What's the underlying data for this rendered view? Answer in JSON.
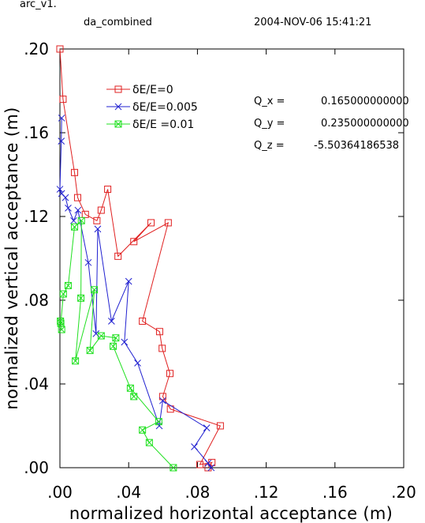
{
  "header": {
    "program": "arc_v1.",
    "run_name": "da_combined",
    "timestamp": "2004-NOV-06  15:41:21"
  },
  "chart_data": {
    "type": "line",
    "xlabel": "normalized horizontal acceptance (m)",
    "ylabel": "normalized vertical acceptance (m)",
    "xlim": [
      0,
      0.2
    ],
    "ylim": [
      0,
      0.2
    ],
    "x_ticks": [
      ".00",
      ".04",
      ".08",
      ".12",
      ".16",
      ".20"
    ],
    "y_ticks": [
      ".00",
      ".04",
      ".08",
      ".12",
      ".16",
      ".20"
    ],
    "grid": false,
    "legend_position": "top-left",
    "series": [
      {
        "name": "δE/E=0",
        "color": "#e02020",
        "marker": "square",
        "x": [
          0.0862,
          0.0884,
          0.0814,
          0.0933,
          0.0643,
          0.0598,
          0.064,
          0.0595,
          0.058,
          0.048,
          0.063,
          0.043,
          0.053,
          0.0338,
          0.0278,
          0.024,
          0.0215,
          0.0148,
          0.0103,
          0.0085,
          0.0018,
          0.0,
          0.0
        ],
        "y": [
          0.0,
          0.0025,
          0.0015,
          0.02,
          0.028,
          0.034,
          0.045,
          0.057,
          0.065,
          0.07,
          0.117,
          0.108,
          0.117,
          0.101,
          0.133,
          0.123,
          0.118,
          0.121,
          0.129,
          0.141,
          0.176,
          0.2,
          0.2
        ]
      },
      {
        "name": "δE/E=0.005",
        "color": "#2020d0",
        "marker": "x",
        "x": [
          0.088,
          0.0862,
          0.0782,
          0.0854,
          0.0598,
          0.0578,
          0.0452,
          0.0375,
          0.04,
          0.03,
          0.022,
          0.021,
          0.0165,
          0.0105,
          0.008,
          0.0048,
          0.0032,
          0.001,
          0.0,
          0.0008,
          0.001
        ],
        "y": [
          0.0,
          0.0022,
          0.01,
          0.019,
          0.032,
          0.02,
          0.05,
          0.06,
          0.089,
          0.07,
          0.114,
          0.064,
          0.098,
          0.123,
          0.118,
          0.124,
          0.129,
          0.131,
          0.133,
          0.156,
          0.167
        ]
      },
      {
        "name": "δE/E =0.01",
        "color": "#20e020",
        "marker": "boxed-x",
        "x": [
          0.066,
          0.052,
          0.048,
          0.0575,
          0.041,
          0.043,
          0.031,
          0.0325,
          0.024,
          0.0175,
          0.02,
          0.009,
          0.0122,
          0.0125,
          0.0085,
          0.0048,
          0.002,
          0.0005,
          0.0003,
          0.001
        ],
        "y": [
          0.0,
          0.012,
          0.018,
          0.022,
          0.038,
          0.034,
          0.058,
          0.062,
          0.063,
          0.056,
          0.085,
          0.051,
          0.081,
          0.118,
          0.115,
          0.087,
          0.083,
          0.069,
          0.07,
          0.066
        ]
      }
    ]
  },
  "annotations": {
    "q_x_label": "Q_x  =",
    "q_x_value": "0.165000000000",
    "q_y_label": "Q_y  =",
    "q_y_value": "0.235000000000",
    "q_z_label": "Q_z  =",
    "q_z_value": "-5.50364186538"
  }
}
